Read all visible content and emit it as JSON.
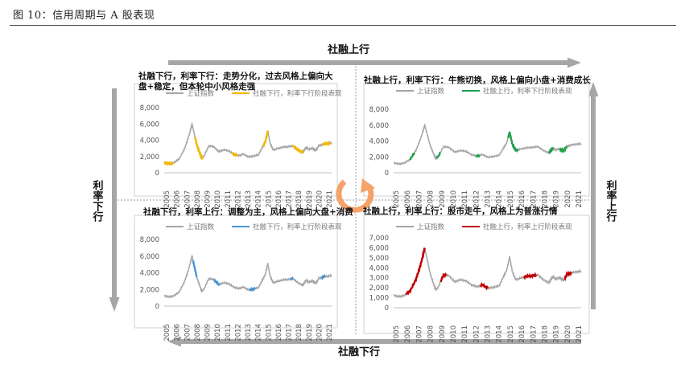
{
  "figure_title": "图 10：信用周期与 A 股表现",
  "axes": {
    "top": "社融上行",
    "bottom": "社融下行",
    "left": "利率下行",
    "right": "利率上行"
  },
  "colors": {
    "arrow": "#a6a6a6",
    "base_line": "#a5a5a5",
    "top_left": "#f2b600",
    "top_right": "#21a04b",
    "bottom_left": "#4a95d6",
    "bottom_right": "#c00000",
    "cycle": "#f5a26b"
  },
  "chart_data": [
    {
      "id": "top_left",
      "type": "line",
      "title": "社融下行，利率下行：走势分化，过去风格上偏向大盘+稳定，但本轮中小风格走强",
      "title_lines": [
        "社融下行，利率下行：走势分化，过去风格上偏向大",
        "盘+稳定，但本轮中小风格走强"
      ],
      "legend": [
        "上证指数",
        "社融下行，利率下行阶段表现"
      ],
      "x_ticks": [
        "2005",
        "2006",
        "2007",
        "2008",
        "2009",
        "2010",
        "2011",
        "2012",
        "2013",
        "2014",
        "2015",
        "2016",
        "2017",
        "2018",
        "2019",
        "2020",
        "2021"
      ],
      "y_ticks": [
        "8,000",
        "6,000",
        "4,000",
        "2,000",
        "0"
      ],
      "ylim": [
        0,
        8000
      ],
      "xlim": [
        2005,
        2021.9
      ],
      "highlight_periods": [
        [
          2005.0,
          2005.9
        ],
        [
          2008.1,
          2008.9
        ],
        [
          2011.8,
          2012.4
        ],
        [
          2015.0,
          2015.5
        ],
        [
          2018.0,
          2019.0
        ],
        [
          2021.0,
          2021.8
        ]
      ]
    },
    {
      "id": "top_right",
      "type": "line",
      "title": "社融上行，利率下行：牛熊切换，风格上偏向小盘+消费成长",
      "title_lines": [
        "社融上行，利率下行：牛熊切换，风格上偏向小盘+消费成长"
      ],
      "legend": [
        "上证指数",
        "社融上行，利率下行阶段表现"
      ],
      "x_ticks": [
        "2005",
        "2006",
        "2007",
        "2008",
        "2009",
        "2010",
        "2011",
        "2012",
        "2013",
        "2014",
        "2015",
        "2016",
        "2017",
        "2018",
        "2019",
        "2020",
        "2021"
      ],
      "y_ticks": [
        "8,000",
        "6,000",
        "4,000",
        "2,000",
        "0"
      ],
      "ylim": [
        0,
        8000
      ],
      "xlim": [
        2005,
        2021.9
      ],
      "highlight_periods": [
        [
          2006.5,
          2006.9
        ],
        [
          2008.9,
          2009.2
        ],
        [
          2012.4,
          2012.8
        ],
        [
          2015.3,
          2016.3
        ],
        [
          2019.0,
          2019.4
        ],
        [
          2020.0,
          2020.6
        ]
      ]
    },
    {
      "id": "bottom_left",
      "type": "line",
      "title": "社融下行，利率上行：调整为主，风格上偏向大盘+消费",
      "title_lines": [
        "社融下行，利率上行：调整为主，风格上偏向大盘+消费"
      ],
      "legend": [
        "上证指数",
        "社融下行，利率上行阶段表现"
      ],
      "x_ticks": [
        "2005",
        "2006",
        "2007",
        "2008",
        "2009",
        "2010",
        "2011",
        "2012",
        "2013",
        "2014",
        "2015",
        "2016",
        "2017",
        "2018",
        "2019",
        "2020",
        "2021"
      ],
      "y_ticks": [
        "8,000",
        "6,000",
        "4,000",
        "2,000",
        "0"
      ],
      "ylim": [
        0,
        8000
      ],
      "xlim": [
        2005,
        2021.9
      ],
      "highlight_periods": [
        [
          2007.9,
          2008.3
        ],
        [
          2010.0,
          2010.6
        ],
        [
          2013.6,
          2014.2
        ],
        [
          2017.7,
          2018.0
        ],
        [
          2020.9,
          2021.3
        ]
      ]
    },
    {
      "id": "bottom_right",
      "type": "line",
      "title": "社融上行，利率上行：股市走牛，风格上为普涨行情",
      "title_lines": [
        "社融上行，利率上行：股市走牛，风格上为普涨行情"
      ],
      "legend": [
        "上证指数",
        "社融上行，利率上行阶段表现"
      ],
      "x_ticks": [
        "2005",
        "2006",
        "2007",
        "2008",
        "2009",
        "2010",
        "2011",
        "2012",
        "2013",
        "2014",
        "2015",
        "2016",
        "2017",
        "2018",
        "2019",
        "2020",
        "2021"
      ],
      "y_ticks": [
        "7,000",
        "6,000",
        "5,000",
        "4,000",
        "3,000",
        "2,000",
        "1,000",
        "0"
      ],
      "ylim": [
        0,
        7000
      ],
      "xlim": [
        2005,
        2021.9
      ],
      "highlight_periods": [
        [
          2006.1,
          2007.8
        ],
        [
          2009.2,
          2009.8
        ],
        [
          2012.8,
          2013.5
        ],
        [
          2016.7,
          2017.9
        ],
        [
          2020.4,
          2021.0
        ]
      ]
    }
  ],
  "index_series": {
    "name": "上证指数",
    "x": [
      2005.0,
      2005.5,
      2006.0,
      2006.5,
      2007.0,
      2007.3,
      2007.6,
      2007.8,
      2008.0,
      2008.3,
      2008.6,
      2008.8,
      2009.0,
      2009.5,
      2010.0,
      2010.5,
      2011.0,
      2011.5,
      2012.0,
      2012.5,
      2013.0,
      2013.5,
      2014.0,
      2014.5,
      2014.9,
      2015.2,
      2015.45,
      2015.7,
      2016.0,
      2016.5,
      2017.0,
      2017.5,
      2018.0,
      2018.5,
      2019.0,
      2019.3,
      2019.6,
      2020.0,
      2020.3,
      2020.6,
      2021.0,
      2021.5,
      2021.9
    ],
    "y": [
      1250,
      1100,
      1250,
      1700,
      2800,
      3800,
      5000,
      6000,
      5000,
      3400,
      2400,
      1800,
      2000,
      3300,
      3200,
      2600,
      2800,
      2700,
      2300,
      2100,
      2300,
      1950,
      2050,
      2200,
      3100,
      3800,
      5100,
      3600,
      2800,
      3000,
      3150,
      3200,
      3300,
      2800,
      2500,
      3100,
      2900,
      3000,
      2750,
      3300,
      3500,
      3600,
      3650
    ]
  }
}
